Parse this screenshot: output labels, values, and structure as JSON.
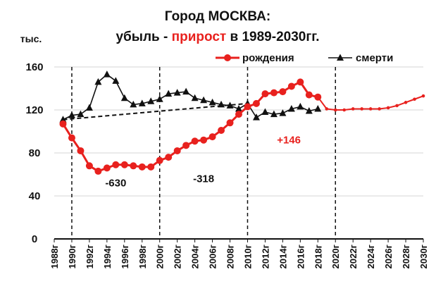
{
  "chart_data": {
    "type": "line",
    "title": {
      "line1": "Город МОСКВА:",
      "line2_prefix": "убыль - ",
      "line2_highlight": "прирост",
      "line2_suffix": " в 1989-2030гг."
    },
    "unit_label": "тыс.",
    "ylim": [
      0,
      160
    ],
    "yticks": [
      "0",
      "40",
      "80",
      "120",
      "160"
    ],
    "xlim": [
      1988,
      2030
    ],
    "xticks": [
      "1988г",
      "1990г",
      "1992г",
      "1994г",
      "1996г",
      "1998г",
      "2000г",
      "2002г",
      "2004г",
      "2006г",
      "2008г",
      "2010г",
      "2012г",
      "2014г",
      "2016г",
      "2018г",
      "2020г",
      "2022г",
      "2024г",
      "2026г",
      "2028г",
      "2030г"
    ],
    "grid": "horizontal",
    "legend_position": "top-right",
    "colors": {
      "births": "#e8211e",
      "deaths": "#111111",
      "highlight": "#e8211e"
    },
    "series": [
      {
        "name": "рождения",
        "key": "births",
        "points": [
          [
            1989,
            107
          ],
          [
            1990,
            94
          ],
          [
            1991,
            82
          ],
          [
            1992,
            68
          ],
          [
            1993,
            63
          ],
          [
            1994,
            66
          ],
          [
            1995,
            69
          ],
          [
            1996,
            69
          ],
          [
            1997,
            68
          ],
          [
            1998,
            67
          ],
          [
            1999,
            67
          ],
          [
            2000,
            73
          ],
          [
            2001,
            76
          ],
          [
            2002,
            82
          ],
          [
            2003,
            87
          ],
          [
            2004,
            91
          ],
          [
            2005,
            92
          ],
          [
            2006,
            95
          ],
          [
            2007,
            101
          ],
          [
            2008,
            108
          ],
          [
            2009,
            116
          ],
          [
            2010,
            123
          ],
          [
            2011,
            126
          ],
          [
            2012,
            135
          ],
          [
            2013,
            136
          ],
          [
            2014,
            137
          ],
          [
            2015,
            142
          ],
          [
            2016,
            146
          ],
          [
            2017,
            134
          ],
          [
            2018,
            132
          ]
        ]
      },
      {
        "name": "",
        "key": "births_forecast",
        "points": [
          [
            2019,
            121
          ],
          [
            2020,
            120
          ],
          [
            2021,
            120
          ],
          [
            2022,
            121
          ],
          [
            2023,
            121
          ],
          [
            2024,
            121
          ],
          [
            2025,
            121
          ],
          [
            2026,
            122
          ],
          [
            2027,
            124
          ],
          [
            2028,
            127
          ],
          [
            2029,
            130
          ],
          [
            2030,
            133
          ]
        ]
      },
      {
        "name": "смерти",
        "key": "deaths",
        "points": [
          [
            1989,
            111
          ],
          [
            1990,
            115
          ],
          [
            1991,
            116
          ],
          [
            1992,
            122
          ],
          [
            1993,
            146
          ],
          [
            1994,
            153
          ],
          [
            1995,
            147
          ],
          [
            1996,
            131
          ],
          [
            1997,
            125
          ],
          [
            1998,
            126
          ],
          [
            1999,
            128
          ],
          [
            2000,
            130
          ],
          [
            2001,
            135
          ],
          [
            2002,
            136
          ],
          [
            2003,
            137
          ],
          [
            2004,
            131
          ],
          [
            2005,
            129
          ],
          [
            2006,
            127
          ],
          [
            2007,
            125
          ],
          [
            2008,
            124
          ],
          [
            2009,
            121
          ],
          [
            2010,
            126
          ],
          [
            2011,
            113
          ],
          [
            2012,
            118
          ],
          [
            2013,
            116
          ],
          [
            2014,
            117
          ],
          [
            2015,
            121
          ],
          [
            2016,
            123
          ],
          [
            2017,
            119
          ],
          [
            2018,
            121
          ]
        ]
      },
      {
        "name": "",
        "key": "deaths_trend",
        "points": [
          [
            1989,
            111
          ],
          [
            2010,
            126
          ]
        ]
      }
    ],
    "reference_lines_x": [
      1990,
      2000,
      2010,
      2020
    ],
    "annotations": [
      {
        "text": "-630",
        "x": 1995.0,
        "y": 52,
        "color": "#111111"
      },
      {
        "text": "-318",
        "x": 2005.0,
        "y": 56,
        "color": "#111111"
      },
      {
        "text": "+146",
        "x": 2014.7,
        "y": 92,
        "color": "#e8211e"
      }
    ]
  }
}
